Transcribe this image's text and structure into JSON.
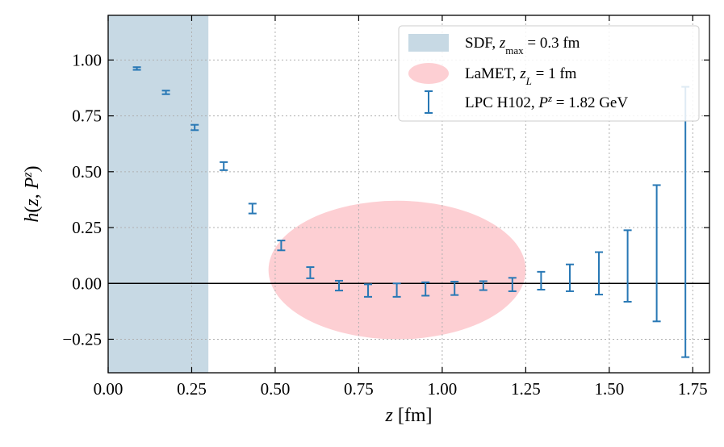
{
  "chart_data": {
    "type": "scatter",
    "xlabel": "z [fm]",
    "ylabel": "h(z, P^z)",
    "xlim": [
      0.0,
      1.8
    ],
    "ylim": [
      -0.4,
      1.2
    ],
    "xticks": [
      "0.00",
      "0.25",
      "0.50",
      "0.75",
      "1.00",
      "1.25",
      "1.50",
      "1.75"
    ],
    "yticks": [
      "−0.25",
      "0.00",
      "0.25",
      "0.50",
      "0.75",
      "1.00"
    ],
    "grid": true,
    "legend_position": "top-right",
    "reference_line_y": 0.0,
    "regions": [
      {
        "name": "SDF, z_max = 0.3 fm",
        "shape": "band",
        "x_range": [
          0.0,
          0.3
        ],
        "color": "#c7d9e4"
      },
      {
        "name": "LaMET, z_L = 1 fm",
        "shape": "ellipse",
        "center": [
          0.865,
          0.06
        ],
        "half_width": 0.385,
        "half_height": 0.31,
        "color": "#fdcfd3"
      }
    ],
    "series": [
      {
        "name": "LPC H102, P^z = 1.82 GeV",
        "color": "#2878b5",
        "x": [
          0.086,
          0.173,
          0.259,
          0.346,
          0.432,
          0.518,
          0.605,
          0.691,
          0.778,
          0.864,
          0.95,
          1.037,
          1.123,
          1.21,
          1.296,
          1.382,
          1.469,
          1.555,
          1.642,
          1.728
        ],
        "y": [
          0.962,
          0.855,
          0.698,
          0.525,
          0.335,
          0.17,
          0.048,
          -0.01,
          -0.032,
          -0.03,
          -0.025,
          -0.022,
          -0.01,
          -0.005,
          0.012,
          0.025,
          0.045,
          0.078,
          0.135,
          0.275
        ],
        "yerr": [
          0.006,
          0.008,
          0.012,
          0.018,
          0.022,
          0.022,
          0.025,
          0.022,
          0.028,
          0.03,
          0.03,
          0.03,
          0.02,
          0.03,
          0.04,
          0.06,
          0.095,
          0.16,
          0.305,
          0.605
        ]
      }
    ],
    "legend": [
      {
        "kind": "band",
        "prefix": "SDF, ",
        "var": "z",
        "sub": "max",
        "suffix": " = 0.3 fm"
      },
      {
        "kind": "ellipse",
        "prefix": "LaMET, ",
        "var": "z",
        "sub": "L",
        "suffix": " = 1 fm"
      },
      {
        "kind": "errorbar",
        "prefix": "LPC H102, ",
        "var": "P",
        "sup": "z",
        "suffix": " = 1.82 GeV"
      }
    ]
  }
}
